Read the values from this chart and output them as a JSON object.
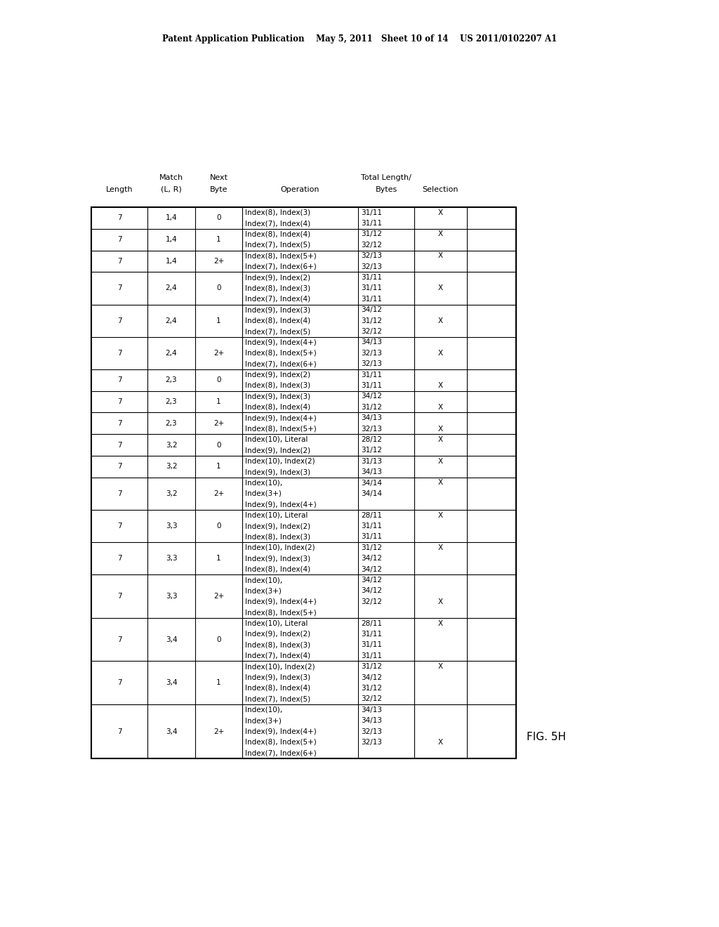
{
  "patent_header": "Patent Application Publication    May 5, 2011   Sheet 10 of 14    US 2011/0102207 A1",
  "fig_label": "FIG. 5H",
  "rows": [
    {
      "length": "7",
      "match": "1,4",
      "next": "0",
      "operations": [
        "Index(8), Index(3)",
        "Index(7), Index(4)"
      ],
      "totals": [
        "31/11",
        "31/11"
      ],
      "selection": "X",
      "sel_line": 0
    },
    {
      "length": "7",
      "match": "1,4",
      "next": "1",
      "operations": [
        "Index(8), Index(4)",
        "Index(7), Index(5)"
      ],
      "totals": [
        "31/12",
        "32/12"
      ],
      "selection": "X",
      "sel_line": 0
    },
    {
      "length": "7",
      "match": "1,4",
      "next": "2+",
      "operations": [
        "Index(8), Index(5+)",
        "Index(7), Index(6+)"
      ],
      "totals": [
        "32/13",
        "32/13"
      ],
      "selection": "X",
      "sel_line": 0
    },
    {
      "length": "7",
      "match": "2,4",
      "next": "0",
      "operations": [
        "Index(9), Index(2)",
        "Index(8), Index(3)",
        "Index(7), Index(4)"
      ],
      "totals": [
        "31/11",
        "31/11",
        "31/11"
      ],
      "selection": "X",
      "sel_line": 1
    },
    {
      "length": "7",
      "match": "2,4",
      "next": "1",
      "operations": [
        "Index(9), Index(3)",
        "Index(8), Index(4)",
        "Index(7), Index(5)"
      ],
      "totals": [
        "34/12",
        "31/12",
        "32/12"
      ],
      "selection": "X",
      "sel_line": 1
    },
    {
      "length": "7",
      "match": "2,4",
      "next": "2+",
      "operations": [
        "Index(9), Index(4+)",
        "Index(8), Index(5+)",
        "Index(7), Index(6+)"
      ],
      "totals": [
        "34/13",
        "32/13",
        "32/13"
      ],
      "selection": "X",
      "sel_line": 1
    },
    {
      "length": "7",
      "match": "2,3",
      "next": "0",
      "operations": [
        "Index(9), Index(2)",
        "Index(8), Index(3)"
      ],
      "totals": [
        "31/11",
        "31/11"
      ],
      "selection": "X",
      "sel_line": 1
    },
    {
      "length": "7",
      "match": "2,3",
      "next": "1",
      "operations": [
        "Index(9), Index(3)",
        "Index(8), Index(4)"
      ],
      "totals": [
        "34/12",
        "31/12"
      ],
      "selection": "X",
      "sel_line": 1
    },
    {
      "length": "7",
      "match": "2,3",
      "next": "2+",
      "operations": [
        "Index(9), Index(4+)",
        "Index(8), Index(5+)"
      ],
      "totals": [
        "34/13",
        "32/13"
      ],
      "selection": "X",
      "sel_line": 1
    },
    {
      "length": "7",
      "match": "3,2",
      "next": "0",
      "operations": [
        "Index(10), Literal",
        "Index(9), Index(2)"
      ],
      "totals": [
        "28/12",
        "31/12"
      ],
      "selection": "X",
      "sel_line": 0
    },
    {
      "length": "7",
      "match": "3,2",
      "next": "1",
      "operations": [
        "Index(10), Index(2)",
        "Index(9), Index(3)"
      ],
      "totals": [
        "31/13",
        "34/13"
      ],
      "selection": "X",
      "sel_line": 0
    },
    {
      "length": "7",
      "match": "3,2",
      "next": "2+",
      "operations": [
        "Index(10),",
        "Index(3+)",
        "Index(9), Index(4+)"
      ],
      "totals": [
        "34/14",
        "34/14",
        ""
      ],
      "selection": "X",
      "sel_line": 0
    },
    {
      "length": "7",
      "match": "3,3",
      "next": "0",
      "operations": [
        "Index(10), Literal",
        "Index(9), Index(2)",
        "Index(8), Index(3)"
      ],
      "totals": [
        "28/11",
        "31/11",
        "31/11"
      ],
      "selection": "X",
      "sel_line": 0
    },
    {
      "length": "7",
      "match": "3,3",
      "next": "1",
      "operations": [
        "Index(10), Index(2)",
        "Index(9), Index(3)",
        "Index(8), Index(4)"
      ],
      "totals": [
        "31/12",
        "34/12",
        "34/12"
      ],
      "selection": "X",
      "sel_line": 0
    },
    {
      "length": "7",
      "match": "3,3",
      "next": "2+",
      "operations": [
        "Index(10),",
        "Index(3+)",
        "Index(9), Index(4+)",
        "Index(8), Index(5+)"
      ],
      "totals": [
        "34/12",
        "34/12",
        "32/12",
        ""
      ],
      "selection": "X",
      "sel_line": 2
    },
    {
      "length": "7",
      "match": "3,4",
      "next": "0",
      "operations": [
        "Index(10), Literal",
        "Index(9), Index(2)",
        "Index(8), Index(3)",
        "Index(7), Index(4)"
      ],
      "totals": [
        "28/11",
        "31/11",
        "31/11",
        "31/11"
      ],
      "selection": "X",
      "sel_line": 0
    },
    {
      "length": "7",
      "match": "3,4",
      "next": "1",
      "operations": [
        "Index(10), Index(2)",
        "Index(9), Index(3)",
        "Index(8), Index(4)",
        "Index(7), Index(5)"
      ],
      "totals": [
        "31/12",
        "34/12",
        "31/12",
        "32/12"
      ],
      "selection": "X",
      "sel_line": 0
    },
    {
      "length": "7",
      "match": "3,4",
      "next": "2+",
      "operations": [
        "Index(10),",
        "Index(3+)",
        "Index(9), Index(4+)",
        "Index(8), Index(5+)",
        "Index(7), Index(6+)"
      ],
      "totals": [
        "34/13",
        "34/13",
        "32/13",
        "32/13",
        ""
      ],
      "selection": "X",
      "sel_line": 3
    }
  ]
}
